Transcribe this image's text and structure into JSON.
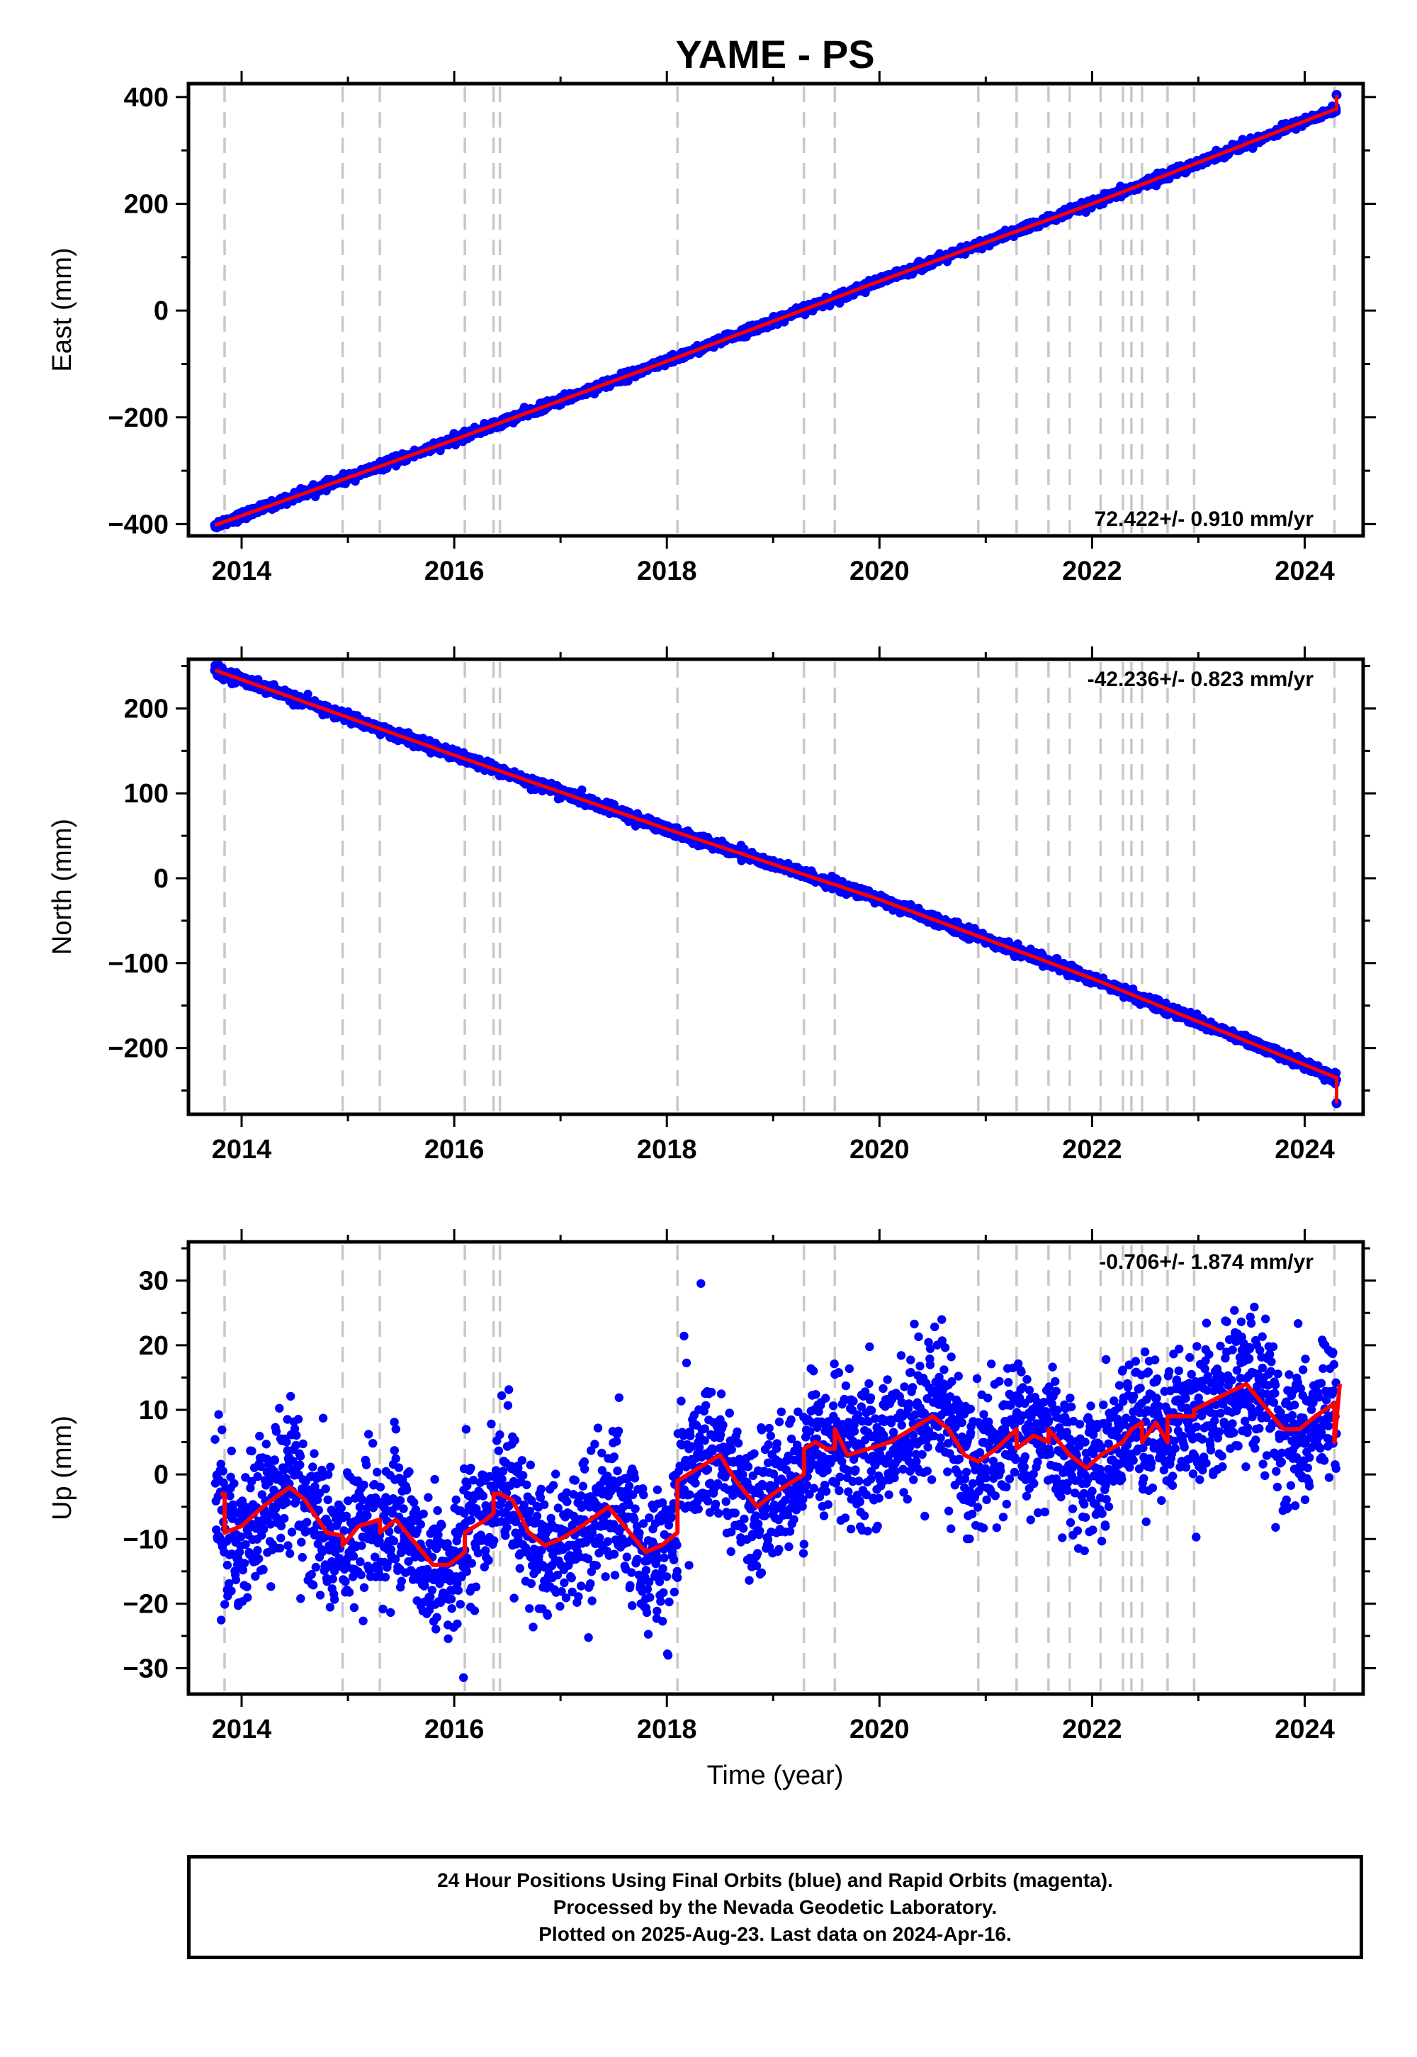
{
  "title": "YAME - PS",
  "shared_xlabel": "Time (year)",
  "caption": {
    "line1": "24 Hour Positions Using Final Orbits (blue) and Rapid Orbits (magenta).",
    "line2": "Processed by the Nevada Geodetic Laboratory.",
    "line3": "Plotted on 2025-Aug-23. Last data on 2024-Apr-16."
  },
  "colors": {
    "data": "#0000ff",
    "model": "#ff0000",
    "steps": "#c8c8c8",
    "axis": "#000000"
  },
  "steps": [
    2013.84,
    2014.95,
    2015.3,
    2016.1,
    2016.37,
    2016.43,
    2018.1,
    2019.29,
    2019.58,
    2020.93,
    2021.29,
    2021.59,
    2021.79,
    2022.08,
    2022.29,
    2022.37,
    2022.47,
    2022.71,
    2022.96,
    2024.28
  ],
  "chart_data": [
    {
      "type": "scatter",
      "ylabel": "East (mm)",
      "xlabel": "",
      "xlim": [
        2013.5,
        2024.55
      ],
      "ylim": [
        -422,
        425
      ],
      "xticks": [
        2014,
        2016,
        2018,
        2020,
        2022,
        2024
      ],
      "yticks": [
        -400,
        -200,
        0,
        200,
        400
      ],
      "annotation": "72.422+/- 0.910 mm/yr",
      "annotation_position": "bottom-right",
      "rate_mm_per_yr": 72.422,
      "start": {
        "t": 2013.75,
        "v": -402
      },
      "end": {
        "t": 2024.3,
        "v": 378
      },
      "endpoint_outlier": {
        "t": 2024.3,
        "v": 404
      },
      "noise_mm": 4,
      "series": [
        {
          "values": [
            [
              2013.75,
              -402
            ],
            [
              2016.0,
              -242
            ],
            [
              2018.0,
              -95
            ],
            [
              2020.0,
              55
            ],
            [
              2022.0,
              200
            ],
            [
              2024.3,
              378
            ]
          ]
        }
      ]
    },
    {
      "type": "scatter",
      "ylabel": "North (mm)",
      "xlabel": "",
      "xlim": [
        2013.5,
        2024.55
      ],
      "ylim": [
        -278,
        258
      ],
      "xticks": [
        2014,
        2016,
        2018,
        2020,
        2022,
        2024
      ],
      "yticks": [
        -200,
        -100,
        0,
        100,
        200
      ],
      "annotation": "-42.236+/- 0.823 mm/yr",
      "annotation_position": "top-right",
      "rate_mm_per_yr": -42.236,
      "start": {
        "t": 2013.75,
        "v": 245
      },
      "end": {
        "t": 2024.3,
        "v": -235
      },
      "endpoint_outlier": {
        "t": 2024.3,
        "v": -265
      },
      "noise_mm": 3,
      "series": [
        {
          "values": [
            [
              2013.75,
              245
            ],
            [
              2016.0,
              145
            ],
            [
              2018.0,
              58
            ],
            [
              2020.0,
              -25
            ],
            [
              2022.0,
              -118
            ],
            [
              2024.3,
              -235
            ]
          ]
        }
      ]
    },
    {
      "type": "scatter",
      "ylabel": "Up (mm)",
      "xlabel": "Time (year)",
      "xlim": [
        2013.5,
        2024.55
      ],
      "ylim": [
        -34,
        36
      ],
      "xticks": [
        2014,
        2016,
        2018,
        2020,
        2022,
        2024
      ],
      "yticks": [
        -30,
        -20,
        -10,
        0,
        10,
        20,
        30
      ],
      "annotation": "-0.706+/- 1.874 mm/yr",
      "annotation_position": "top-right",
      "rate_mm_per_yr": -0.706,
      "noise_mm": 5.5,
      "model": [
        [
          2013.8,
          -3
        ],
        [
          2013.84,
          -3
        ],
        [
          2013.84,
          -9
        ],
        [
          2014.0,
          -8
        ],
        [
          2014.2,
          -5
        ],
        [
          2014.45,
          -2
        ],
        [
          2014.6,
          -4
        ],
        [
          2014.8,
          -9
        ],
        [
          2014.95,
          -9.5
        ],
        [
          2014.95,
          -11
        ],
        [
          2015.1,
          -8
        ],
        [
          2015.3,
          -7
        ],
        [
          2015.3,
          -9
        ],
        [
          2015.45,
          -7
        ],
        [
          2015.6,
          -10
        ],
        [
          2015.8,
          -14
        ],
        [
          2015.95,
          -14
        ],
        [
          2016.1,
          -12
        ],
        [
          2016.1,
          -9
        ],
        [
          2016.3,
          -7
        ],
        [
          2016.37,
          -6
        ],
        [
          2016.37,
          -3
        ],
        [
          2016.43,
          -3
        ],
        [
          2016.55,
          -4
        ],
        [
          2016.7,
          -9
        ],
        [
          2016.85,
          -11
        ],
        [
          2017.0,
          -10
        ],
        [
          2017.2,
          -8
        ],
        [
          2017.45,
          -5
        ],
        [
          2017.6,
          -8
        ],
        [
          2017.8,
          -12
        ],
        [
          2017.95,
          -11
        ],
        [
          2018.1,
          -9
        ],
        [
          2018.1,
          -1
        ],
        [
          2018.3,
          1
        ],
        [
          2018.5,
          3
        ],
        [
          2018.65,
          -1
        ],
        [
          2018.85,
          -5
        ],
        [
          2019.0,
          -3
        ],
        [
          2019.29,
          0
        ],
        [
          2019.29,
          4
        ],
        [
          2019.4,
          5
        ],
        [
          2019.5,
          4
        ],
        [
          2019.58,
          4
        ],
        [
          2019.58,
          7
        ],
        [
          2019.7,
          3
        ],
        [
          2019.9,
          4
        ],
        [
          2020.1,
          5
        ],
        [
          2020.3,
          7
        ],
        [
          2020.5,
          9
        ],
        [
          2020.65,
          7
        ],
        [
          2020.8,
          3
        ],
        [
          2020.93,
          2
        ],
        [
          2021.1,
          4
        ],
        [
          2021.29,
          7
        ],
        [
          2021.29,
          4
        ],
        [
          2021.45,
          6
        ],
        [
          2021.59,
          5
        ],
        [
          2021.59,
          7
        ],
        [
          2021.79,
          3
        ],
        [
          2021.95,
          1
        ],
        [
          2022.08,
          3
        ],
        [
          2022.29,
          5
        ],
        [
          2022.37,
          7
        ],
        [
          2022.47,
          8
        ],
        [
          2022.47,
          5
        ],
        [
          2022.6,
          8
        ],
        [
          2022.71,
          5
        ],
        [
          2022.71,
          9
        ],
        [
          2022.96,
          9
        ],
        [
          2022.96,
          10
        ],
        [
          2023.2,
          12
        ],
        [
          2023.45,
          14
        ],
        [
          2023.6,
          11
        ],
        [
          2023.8,
          7
        ],
        [
          2023.95,
          7
        ],
        [
          2024.1,
          9
        ],
        [
          2024.28,
          11
        ],
        [
          2024.28,
          5
        ],
        [
          2024.33,
          14
        ]
      ]
    }
  ]
}
